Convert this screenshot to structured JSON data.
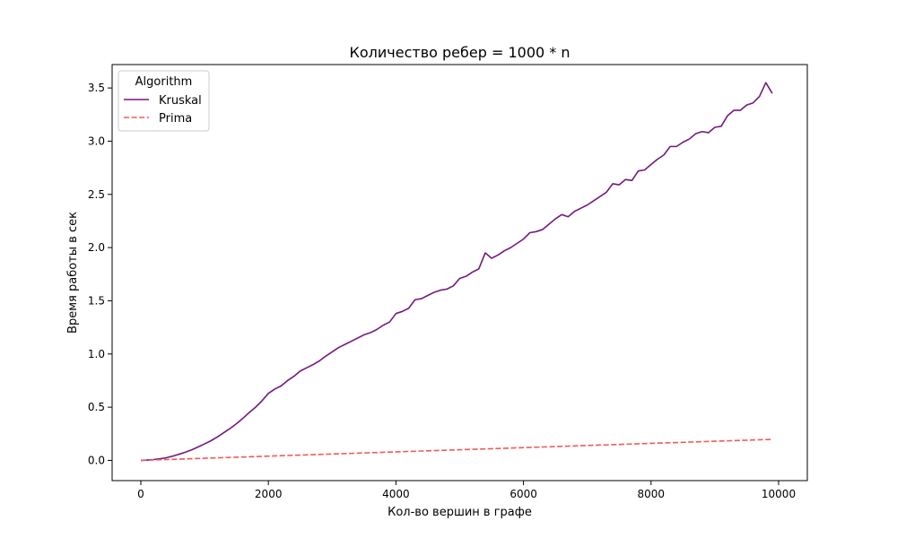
{
  "chart_data": {
    "type": "line",
    "title": "Количество ребер = 1000 * n",
    "xlabel": "Кол-во вершин в графе",
    "ylabel": "Время работы в сек",
    "xlim": [
      -450,
      10450
    ],
    "ylim": [
      -0.19,
      3.72
    ],
    "xticks": [
      0,
      2000,
      4000,
      6000,
      8000,
      10000
    ],
    "xtick_labels": [
      "0",
      "2000",
      "4000",
      "6000",
      "8000",
      "10000"
    ],
    "yticks": [
      0.0,
      0.5,
      1.0,
      1.5,
      2.0,
      2.5,
      3.0,
      3.5
    ],
    "ytick_labels": [
      "0.0",
      "0.5",
      "1.0",
      "1.5",
      "2.0",
      "2.5",
      "3.0",
      "3.5"
    ],
    "grid": false,
    "legend": {
      "title": "Algorithm",
      "placement": "top-left"
    },
    "x": [
      0,
      100,
      200,
      300,
      400,
      500,
      600,
      700,
      800,
      900,
      1000,
      1100,
      1200,
      1300,
      1400,
      1500,
      1600,
      1700,
      1800,
      1900,
      2000,
      2100,
      2200,
      2300,
      2400,
      2500,
      2600,
      2700,
      2800,
      2900,
      3000,
      3100,
      3200,
      3300,
      3400,
      3500,
      3600,
      3700,
      3800,
      3900,
      4000,
      4100,
      4200,
      4300,
      4400,
      4500,
      4600,
      4700,
      4800,
      4900,
      5000,
      5100,
      5200,
      5300,
      5400,
      5500,
      5600,
      5700,
      5800,
      5900,
      6000,
      6100,
      6200,
      6300,
      6400,
      6500,
      6600,
      6700,
      6800,
      6900,
      7000,
      7100,
      7200,
      7300,
      7400,
      7500,
      7600,
      7700,
      7800,
      7900,
      8000,
      8100,
      8200,
      8300,
      8400,
      8500,
      8600,
      8700,
      8800,
      8900,
      9000,
      9100,
      9200,
      9300,
      9400,
      9500,
      9600,
      9700,
      9800,
      9900
    ],
    "series": [
      {
        "name": "Kruskal",
        "color": "#74197f",
        "style": "solid",
        "values": [
          0.0,
          0.003,
          0.008,
          0.015,
          0.025,
          0.04,
          0.058,
          0.078,
          0.1,
          0.127,
          0.155,
          0.185,
          0.22,
          0.26,
          0.3,
          0.345,
          0.395,
          0.45,
          0.5,
          0.56,
          0.63,
          0.67,
          0.7,
          0.75,
          0.79,
          0.84,
          0.87,
          0.9,
          0.935,
          0.98,
          1.02,
          1.06,
          1.09,
          1.12,
          1.15,
          1.18,
          1.2,
          1.23,
          1.27,
          1.3,
          1.38,
          1.4,
          1.43,
          1.51,
          1.52,
          1.55,
          1.58,
          1.6,
          1.61,
          1.64,
          1.71,
          1.73,
          1.77,
          1.8,
          1.95,
          1.9,
          1.93,
          1.97,
          2.0,
          2.04,
          2.08,
          2.14,
          2.15,
          2.17,
          2.22,
          2.27,
          2.31,
          2.29,
          2.34,
          2.37,
          2.4,
          2.44,
          2.48,
          2.52,
          2.6,
          2.59,
          2.64,
          2.63,
          2.72,
          2.73,
          2.78,
          2.83,
          2.87,
          2.95,
          2.95,
          2.99,
          3.02,
          3.07,
          3.09,
          3.08,
          3.13,
          3.14,
          3.24,
          3.29,
          3.29,
          3.34,
          3.36,
          3.42,
          3.55,
          3.45
        ]
      },
      {
        "name": "Prima",
        "color": "#f05a5a",
        "style": "dashed",
        "values": [
          0.0,
          0.002,
          0.004,
          0.006,
          0.008,
          0.01,
          0.012,
          0.014,
          0.016,
          0.018,
          0.02,
          0.022,
          0.024,
          0.026,
          0.028,
          0.03,
          0.032,
          0.034,
          0.036,
          0.038,
          0.04,
          0.042,
          0.044,
          0.046,
          0.048,
          0.05,
          0.052,
          0.054,
          0.056,
          0.058,
          0.06,
          0.062,
          0.064,
          0.066,
          0.068,
          0.07,
          0.072,
          0.074,
          0.076,
          0.078,
          0.08,
          0.082,
          0.084,
          0.086,
          0.088,
          0.09,
          0.092,
          0.094,
          0.096,
          0.098,
          0.1,
          0.102,
          0.104,
          0.106,
          0.108,
          0.11,
          0.112,
          0.114,
          0.116,
          0.118,
          0.12,
          0.122,
          0.124,
          0.126,
          0.128,
          0.13,
          0.132,
          0.134,
          0.136,
          0.138,
          0.14,
          0.142,
          0.144,
          0.146,
          0.148,
          0.15,
          0.152,
          0.154,
          0.156,
          0.158,
          0.16,
          0.162,
          0.164,
          0.166,
          0.168,
          0.17,
          0.172,
          0.174,
          0.176,
          0.178,
          0.18,
          0.182,
          0.184,
          0.186,
          0.188,
          0.19,
          0.192,
          0.194,
          0.196,
          0.198
        ]
      }
    ]
  }
}
